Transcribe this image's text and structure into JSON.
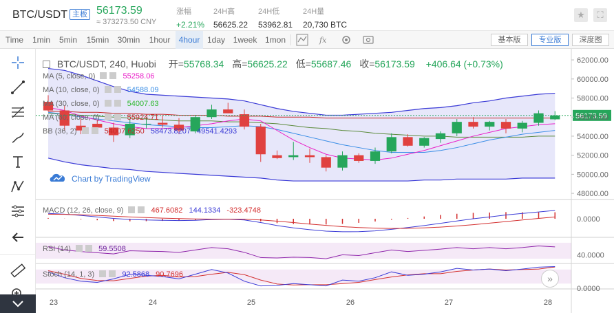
{
  "header": {
    "pair": "BTC/USDT",
    "tag": "主板",
    "last_price": "56173.59",
    "cny_price": "≈ 373273.50 CNY",
    "stats": [
      {
        "label": "涨幅",
        "value": "+2.21%"
      },
      {
        "label": "24H高",
        "value": "56625.22"
      },
      {
        "label": "24H低",
        "value": "53962.81"
      },
      {
        "label": "24H量",
        "value": "20,730 BTC"
      }
    ],
    "star_icon": "star-icon",
    "fullscreen_icon": "fullscreen-icon"
  },
  "toolbar": {
    "timeframes": [
      "Time",
      "1min",
      "5min",
      "15min",
      "30min",
      "1hour",
      "4hour",
      "1day",
      "1week",
      "1mon"
    ],
    "active_timeframe": "4hour",
    "icons": [
      "chart-type-icon",
      "indicators-icon",
      "settings-icon",
      "screenshot-icon"
    ],
    "views": [
      "基本版",
      "专业版",
      "深度图"
    ],
    "active_view": "专业版"
  },
  "tools": [
    "crosshair-icon",
    "trendline-icon",
    "fib-icon",
    "brush-icon",
    "text-icon",
    "pattern-icon",
    "measure-icon",
    "back-arrow-icon",
    "ruler-icon",
    "zoom-in-icon"
  ],
  "chart": {
    "title": {
      "symbol": "BTC/USDT, 240, Huobi",
      "open_label": "开",
      "open": "55768.34",
      "high_label": "高",
      "high": "56625.22",
      "low_label": "低",
      "low": "55687.46",
      "close_label": "收",
      "close": "56173.59",
      "change": "+406.64 (+0.73%)"
    },
    "legends": [
      {
        "name": "MA (5, close, 0)",
        "values": [
          "55258.06"
        ],
        "colors": [
          "#e91ec8"
        ]
      },
      {
        "name": "MA (10, close, 0)",
        "values": [
          "54588.09"
        ],
        "colors": [
          "#3a8ee6"
        ]
      },
      {
        "name": "MA (30, close, 0)",
        "values": [
          "54007.63"
        ],
        "colors": [
          "#2eb82e"
        ]
      },
      {
        "name": "MA (60, close, 0)",
        "values": [
          "55924.71"
        ],
        "colors": [
          "#c62828"
        ]
      },
      {
        "name": "BB (36, 2)",
        "values": [
          "54007.6250",
          "58473.8207",
          "49541.4293"
        ],
        "colors": [
          "#c62828",
          "#3a3ad6",
          "#3a3ad6"
        ]
      }
    ],
    "tv_badge": "Chart by TradingView",
    "macd": {
      "name": "MACD (12, 26, close, 9)",
      "values": [
        "467.6082",
        "144.1334",
        "-323.4748"
      ],
      "colors": [
        "#d32f2f",
        "#3a3ad6",
        "#d32f2f"
      ]
    },
    "rsi": {
      "name": "RSI (14)",
      "values": [
        "59.5508"
      ],
      "colors": [
        "#6a1b9a"
      ]
    },
    "stoch": {
      "name": "Stoch (14, 1, 3)",
      "values": [
        "92.5868",
        "90.7696"
      ],
      "colors": [
        "#3a3ad6",
        "#d32f2f"
      ]
    },
    "price_axis": [
      "62000.00",
      "60000.00",
      "58000.00",
      "56000.00",
      "54000.00",
      "52000.00",
      "50000.00",
      "48000.00"
    ],
    "last_label": "56173.59",
    "macd_axis": [
      "0.0000"
    ],
    "rsi_axis": [
      "40.0000"
    ],
    "stoch_axis": [
      "0.0000"
    ],
    "date_axis": [
      "23",
      "24",
      "25",
      "26",
      "27",
      "28"
    ],
    "up_color": "#26a65b",
    "down_color": "#e0413f"
  },
  "chart_data": {
    "type": "candlestick",
    "x_dates": [
      "23",
      "24",
      "25",
      "26",
      "27",
      "28"
    ],
    "ylim": [
      47500,
      62800
    ],
    "candles": [
      {
        "o": 57600,
        "h": 58300,
        "l": 56600,
        "c": 56700
      },
      {
        "o": 56700,
        "h": 57200,
        "l": 54600,
        "c": 55100
      },
      {
        "o": 55100,
        "h": 55900,
        "l": 54200,
        "c": 54600
      },
      {
        "o": 55300,
        "h": 55700,
        "l": 54500,
        "c": 54900
      },
      {
        "o": 54900,
        "h": 55400,
        "l": 53400,
        "c": 54100
      },
      {
        "o": 54100,
        "h": 55800,
        "l": 53800,
        "c": 55300
      },
      {
        "o": 55300,
        "h": 56000,
        "l": 54800,
        "c": 55300
      },
      {
        "o": 55400,
        "h": 56200,
        "l": 54900,
        "c": 55200
      },
      {
        "o": 55200,
        "h": 55900,
        "l": 54200,
        "c": 54600
      },
      {
        "o": 54500,
        "h": 56200,
        "l": 54300,
        "c": 56000
      },
      {
        "o": 56000,
        "h": 57300,
        "l": 55800,
        "c": 56800
      },
      {
        "o": 56800,
        "h": 57500,
        "l": 56400,
        "c": 56400
      },
      {
        "o": 56300,
        "h": 56800,
        "l": 54700,
        "c": 55000
      },
      {
        "o": 55000,
        "h": 55300,
        "l": 51300,
        "c": 52100
      },
      {
        "o": 52000,
        "h": 52500,
        "l": 51600,
        "c": 51700
      },
      {
        "o": 51800,
        "h": 53400,
        "l": 51500,
        "c": 52000
      },
      {
        "o": 52000,
        "h": 52700,
        "l": 51200,
        "c": 51800
      },
      {
        "o": 51800,
        "h": 52000,
        "l": 50300,
        "c": 50700
      },
      {
        "o": 50700,
        "h": 52400,
        "l": 50400,
        "c": 52000
      },
      {
        "o": 52000,
        "h": 52200,
        "l": 51200,
        "c": 51400
      },
      {
        "o": 51400,
        "h": 52800,
        "l": 51100,
        "c": 52400
      },
      {
        "o": 52400,
        "h": 54300,
        "l": 52200,
        "c": 53900
      },
      {
        "o": 53900,
        "h": 54200,
        "l": 52900,
        "c": 53000
      },
      {
        "o": 53000,
        "h": 53900,
        "l": 52800,
        "c": 53800
      },
      {
        "o": 53700,
        "h": 54500,
        "l": 53300,
        "c": 54300
      },
      {
        "o": 54300,
        "h": 55800,
        "l": 54000,
        "c": 55500
      },
      {
        "o": 55500,
        "h": 56000,
        "l": 54800,
        "c": 55000
      },
      {
        "o": 55000,
        "h": 55600,
        "l": 54600,
        "c": 55500
      },
      {
        "o": 55500,
        "h": 55800,
        "l": 54300,
        "c": 54800
      },
      {
        "o": 54800,
        "h": 55600,
        "l": 54400,
        "c": 55400
      },
      {
        "o": 55400,
        "h": 56700,
        "l": 55100,
        "c": 56400
      },
      {
        "o": 55768.34,
        "h": 56625.22,
        "l": 55687.46,
        "c": 56173.59
      }
    ],
    "bb_upper": [
      61100,
      60900,
      60400,
      59800,
      59200,
      58700,
      58400,
      58300,
      58200,
      58100,
      58000,
      57900,
      57700,
      57300,
      56900,
      56600,
      56400,
      56200,
      56200,
      56300,
      56400,
      56500,
      56700,
      56900,
      57000,
      57200,
      57500,
      57700,
      58000,
      58200,
      58400,
      58500
    ],
    "bb_lower": [
      51700,
      51300,
      51000,
      50800,
      50600,
      50500,
      50300,
      50200,
      50100,
      50000,
      49900,
      49800,
      49700,
      49600,
      49400,
      49300,
      49300,
      49300,
      49300,
      49300,
      49300,
      49300,
      49300,
      49400,
      49400,
      49500,
      49500,
      49500,
      49500,
      49600,
      49600,
      49600
    ],
    "ma5": [
      57000,
      56700,
      56100,
      55700,
      55300,
      55000,
      54800,
      54800,
      54900,
      55100,
      55300,
      55600,
      55800,
      55600,
      54600,
      53600,
      52800,
      52100,
      51700,
      51600,
      51500,
      51700,
      52100,
      52500,
      53000,
      53500,
      54000,
      54400,
      54800,
      55000,
      55200,
      55300
    ],
    "ma10": [
      56500,
      56300,
      56000,
      55800,
      55600,
      55400,
      55200,
      55100,
      55000,
      54900,
      54900,
      55000,
      55100,
      55000,
      54700,
      54300,
      53900,
      53500,
      53100,
      52800,
      52500,
      52300,
      52300,
      52300,
      52500,
      52800,
      53200,
      53600,
      53900,
      54200,
      54400,
      54600
    ],
    "ma30": [
      56400,
      56300,
      56200,
      56100,
      56000,
      55900,
      55800,
      55700,
      55600,
      55600,
      55600,
      55500,
      55500,
      55400,
      55300,
      55100,
      54900,
      54800,
      54600,
      54500,
      54300,
      54200,
      54100,
      54000,
      54000,
      53900,
      53900,
      53900,
      53900,
      53900,
      54000,
      54000
    ],
    "ma60": [
      56600,
      56600,
      56500,
      56500,
      56400,
      56400,
      56300,
      56300,
      56200,
      56200,
      56200,
      56100,
      56100,
      56100,
      56000,
      56000,
      56000,
      55900,
      55900,
      55900,
      55900,
      55900,
      55900,
      55900,
      55900,
      55900,
      55900,
      55900,
      55900,
      55900,
      55900,
      55900
    ],
    "macd_line": [
      0.35,
      0.3,
      0.22,
      0.12,
      0.02,
      -0.05,
      -0.08,
      -0.1,
      -0.12,
      -0.1,
      -0.05,
      -0.03,
      -0.08,
      -0.25,
      -0.45,
      -0.6,
      -0.72,
      -0.82,
      -0.86,
      -0.85,
      -0.8,
      -0.7,
      -0.58,
      -0.45,
      -0.3,
      -0.15,
      0.0,
      0.12,
      0.25,
      0.35,
      0.45,
      0.55
    ],
    "macd_signal": [
      0.3,
      0.29,
      0.26,
      0.22,
      0.17,
      0.12,
      0.08,
      0.04,
      0.01,
      -0.01,
      -0.02,
      -0.02,
      -0.03,
      -0.08,
      -0.16,
      -0.25,
      -0.35,
      -0.44,
      -0.52,
      -0.58,
      -0.62,
      -0.64,
      -0.63,
      -0.6,
      -0.55,
      -0.48,
      -0.39,
      -0.29,
      -0.19,
      -0.08,
      0.02,
      0.12
    ],
    "rsi": [
      60,
      52,
      48,
      45,
      42,
      50,
      49,
      48,
      46,
      52,
      58,
      55,
      46,
      33,
      32,
      34,
      33,
      30,
      40,
      38,
      45,
      52,
      48,
      51,
      54,
      58,
      55,
      58,
      55,
      58,
      62,
      59.55
    ],
    "stoch_k": [
      70,
      45,
      30,
      25,
      40,
      60,
      55,
      50,
      40,
      60,
      80,
      65,
      30,
      10,
      12,
      20,
      15,
      10,
      35,
      30,
      45,
      70,
      55,
      60,
      70,
      85,
      78,
      82,
      75,
      82,
      90,
      92.59
    ],
    "stoch_d": [
      75,
      60,
      42,
      33,
      32,
      42,
      52,
      55,
      48,
      50,
      60,
      68,
      58,
      35,
      18,
      14,
      15,
      15,
      20,
      25,
      37,
      48,
      57,
      62,
      62,
      72,
      78,
      82,
      78,
      80,
      82,
      90.77
    ]
  }
}
